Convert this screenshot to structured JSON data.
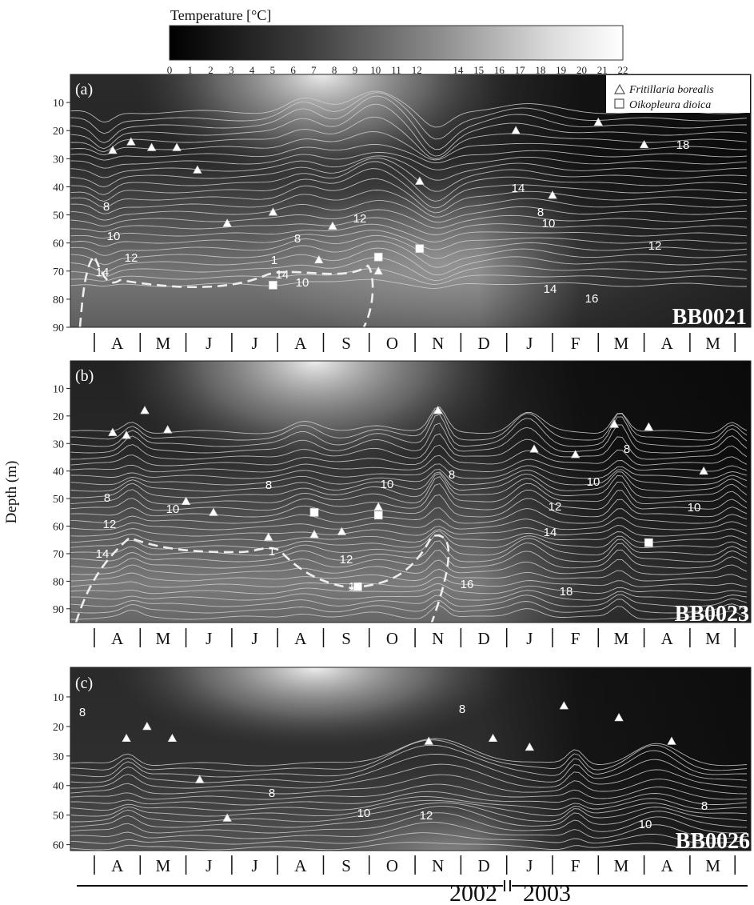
{
  "colorbar": {
    "title": "Temperature [°C]",
    "min": 0,
    "max": 22,
    "ticks": [
      0,
      1,
      2,
      3,
      4,
      5,
      6,
      7,
      8,
      9,
      10,
      11,
      12,
      14,
      15,
      16,
      17,
      18,
      19,
      20,
      21,
      22
    ]
  },
  "y_axis_label": "Depth (m)",
  "months": [
    "A",
    "M",
    "J",
    "J",
    "A",
    "S",
    "O",
    "N",
    "D",
    "J",
    "F",
    "M",
    "A",
    "M"
  ],
  "years": [
    "2002",
    "2003"
  ],
  "legend": [
    {
      "symbol": "triangle",
      "label": "Fritillaria borealis"
    },
    {
      "symbol": "square",
      "label": "Oikopleura dioica"
    }
  ],
  "chart_data": [
    {
      "type": "heatmap",
      "panel": "(a)",
      "station": "BB0021",
      "ylim": [
        0,
        90
      ],
      "yticks": [
        10,
        20,
        30,
        40,
        50,
        60,
        70,
        80,
        90
      ],
      "contour_labels": [
        "8",
        "10",
        "12",
        "14",
        "1",
        "14",
        "8",
        "10",
        "12",
        "14",
        "8",
        "10",
        "12",
        "14",
        "16",
        "18",
        "8"
      ],
      "fritillaria_borealis": [
        [
          -0.1,
          27
        ],
        [
          0.3,
          24
        ],
        [
          0.75,
          26
        ],
        [
          1.3,
          26
        ],
        [
          1.75,
          34
        ],
        [
          2.4,
          53
        ],
        [
          3.4,
          49
        ],
        [
          4.4,
          66
        ],
        [
          4.7,
          54
        ],
        [
          5.7,
          70
        ],
        [
          6.6,
          38
        ],
        [
          8.7,
          20
        ],
        [
          9.5,
          43
        ],
        [
          10.5,
          17
        ],
        [
          11.5,
          25
        ]
      ],
      "oikopleura_dioica": [
        [
          3.4,
          75
        ],
        [
          5.7,
          65
        ],
        [
          6.6,
          62
        ]
      ]
    },
    {
      "type": "heatmap",
      "panel": "(b)",
      "station": "BB0023",
      "ylim": [
        0,
        95
      ],
      "yticks": [
        10,
        20,
        30,
        40,
        50,
        60,
        70,
        80,
        90
      ],
      "contour_labels": [
        "8",
        "12",
        "14",
        "10",
        "1",
        "8",
        "12",
        "10",
        "14",
        "8",
        "16",
        "10",
        "12",
        "14",
        "18",
        "8",
        "10",
        "16"
      ],
      "fritillaria_borealis": [
        [
          -0.1,
          26
        ],
        [
          0.2,
          27
        ],
        [
          0.6,
          18
        ],
        [
          1.1,
          25
        ],
        [
          1.5,
          51
        ],
        [
          2.1,
          55
        ],
        [
          3.3,
          64
        ],
        [
          4.3,
          63
        ],
        [
          4.9,
          62
        ],
        [
          5.7,
          53
        ],
        [
          7.0,
          18
        ],
        [
          9.1,
          32
        ],
        [
          10.0,
          34
        ],
        [
          10.85,
          23
        ],
        [
          11.6,
          24
        ],
        [
          12.8,
          40
        ]
      ],
      "oikopleura_dioica": [
        [
          4.3,
          55
        ],
        [
          5.25,
          82
        ],
        [
          5.7,
          56
        ],
        [
          11.6,
          66
        ]
      ]
    },
    {
      "type": "heatmap",
      "panel": "(c)",
      "station": "BB0026",
      "ylim": [
        0,
        62
      ],
      "yticks": [
        10,
        20,
        30,
        40,
        50,
        60
      ],
      "contour_labels": [
        "8",
        "8",
        "8",
        "10",
        "12",
        "8",
        "10"
      ],
      "fritillaria_borealis": [
        [
          0.2,
          24
        ],
        [
          0.65,
          20
        ],
        [
          1.2,
          24
        ],
        [
          1.8,
          38
        ],
        [
          2.4,
          51
        ],
        [
          6.8,
          25
        ],
        [
          8.2,
          24
        ],
        [
          9.0,
          27
        ],
        [
          9.75,
          13
        ],
        [
          10.95,
          17
        ],
        [
          12.1,
          25
        ]
      ],
      "oikopleura_dioica": []
    }
  ]
}
